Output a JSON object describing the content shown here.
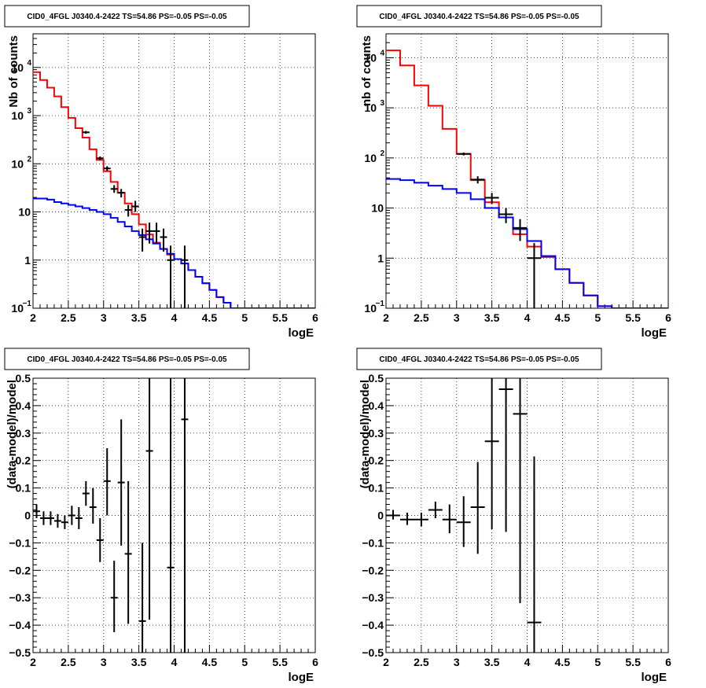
{
  "chart_data": [
    {
      "type": "line",
      "title": "CID0_4FGL J0340.4-2422 TS=54.86 PS=-0.05 PS=-0.05",
      "xlabel": "logE",
      "ylabel": "Nb of counts",
      "xlim": [
        2,
        6
      ],
      "ylim": [
        0.1,
        50000
      ],
      "log_y": true,
      "grid": true,
      "xticks": [
        "2",
        "2.5",
        "3",
        "3.5",
        "4",
        "4.5",
        "5",
        "5.5",
        "6"
      ],
      "yticks": [
        {
          "value": 0.1,
          "label": "10",
          "sup": "−1"
        },
        {
          "value": 1,
          "label": "1",
          "sup": ""
        },
        {
          "value": 10,
          "label": "10",
          "sup": ""
        },
        {
          "value": 100,
          "label": "10",
          "sup": "2"
        },
        {
          "value": 1000,
          "label": "10",
          "sup": "3"
        },
        {
          "value": 10000,
          "label": "10",
          "sup": "4"
        }
      ],
      "step_series": [
        {
          "color": "#ff0000",
          "edges": [
            2,
            2.1,
            2.2,
            2.3,
            2.4,
            2.5,
            2.6,
            2.7,
            2.8,
            2.9,
            3.0,
            3.1,
            3.2,
            3.3,
            3.4,
            3.5,
            3.6,
            3.7,
            3.8,
            3.9,
            4.0,
            4.1,
            4.2,
            4.3,
            4.4,
            4.5,
            4.6,
            4.7,
            4.8,
            4.9,
            5.0,
            5.1,
            5.2,
            5.3,
            5.4,
            5.5,
            5.6,
            5.7,
            5.8,
            5.9,
            6.0
          ],
          "values": [
            8000,
            5500,
            3800,
            2500,
            1500,
            900,
            550,
            350,
            200,
            120,
            70,
            42,
            25,
            15,
            9,
            5.5,
            3.4,
            2.3,
            1.7,
            1.3,
            1.05,
            0.85,
            0.62,
            0.45,
            0.33,
            0.24,
            0.17,
            0.13,
            0.1,
            0.1,
            0.1,
            0.1,
            0.1,
            0.1,
            0.1,
            0.1,
            0.1,
            0.1,
            0.1,
            0.1
          ]
        },
        {
          "color": "#0000ff",
          "edges": [
            2,
            2.1,
            2.2,
            2.3,
            2.4,
            2.5,
            2.6,
            2.7,
            2.8,
            2.9,
            3.0,
            3.1,
            3.2,
            3.3,
            3.4,
            3.5,
            3.6,
            3.7,
            3.8,
            3.9,
            4.0,
            4.1,
            4.2,
            4.3,
            4.4,
            4.5,
            4.6,
            4.7,
            4.8,
            4.9,
            5.0,
            5.1,
            5.2,
            5.3,
            5.4,
            5.5,
            5.6,
            5.7,
            5.8,
            5.9,
            6.0
          ],
          "values": [
            19,
            19,
            18,
            16,
            15,
            14,
            13,
            12,
            11,
            10,
            9,
            7.5,
            6.2,
            5,
            4,
            3.3,
            2.7,
            2.2,
            1.7,
            1.35,
            1.05,
            0.85,
            0.62,
            0.45,
            0.33,
            0.24,
            0.17,
            0.13,
            0.1,
            0.1,
            0.1,
            0.1,
            0.1,
            0.1,
            0.1,
            0.1,
            0.1,
            0.1,
            0.1,
            0.1
          ]
        }
      ],
      "points": [
        {
          "x": 2.75,
          "y": 450,
          "xerr": 0.05,
          "ylo": 420,
          "yhi": 480
        },
        {
          "x": 2.95,
          "y": 130,
          "xerr": 0.05,
          "ylo": 118,
          "yhi": 142
        },
        {
          "x": 3.05,
          "y": 80,
          "xerr": 0.05,
          "ylo": 71,
          "yhi": 89
        },
        {
          "x": 3.15,
          "y": 30,
          "xerr": 0.05,
          "ylo": 25,
          "yhi": 36
        },
        {
          "x": 3.25,
          "y": 25,
          "xerr": 0.05,
          "ylo": 20,
          "yhi": 30
        },
        {
          "x": 3.35,
          "y": 11,
          "xerr": 0.05,
          "ylo": 8,
          "yhi": 14
        },
        {
          "x": 3.45,
          "y": 13,
          "xerr": 0.05,
          "ylo": 10,
          "yhi": 17
        },
        {
          "x": 3.55,
          "y": 3,
          "xerr": 0.05,
          "ylo": 1.5,
          "yhi": 4.5
        },
        {
          "x": 3.65,
          "y": 4,
          "xerr": 0.05,
          "ylo": 2.2,
          "yhi": 6
        },
        {
          "x": 3.75,
          "y": 4,
          "xerr": 0.05,
          "ylo": 2.2,
          "yhi": 6
        },
        {
          "x": 3.85,
          "y": 3,
          "xerr": 0.05,
          "ylo": 1.5,
          "yhi": 4.5
        },
        {
          "x": 3.95,
          "y": 1,
          "xerr": 0.05,
          "ylo": 0.1,
          "yhi": 2
        },
        {
          "x": 4.15,
          "y": 1,
          "xerr": 0.05,
          "ylo": 0.1,
          "yhi": 2
        }
      ]
    },
    {
      "type": "line",
      "title": "CID0_4FGL J0340.4-2422 TS=54.86 PS=-0.05 PS=-0.05",
      "xlabel": "logE",
      "ylabel": "nb of counts",
      "xlim": [
        2,
        6
      ],
      "ylim": [
        0.1,
        30000
      ],
      "log_y": true,
      "grid": true,
      "xticks": [
        "2",
        "2.5",
        "3",
        "3.5",
        "4",
        "4.5",
        "5",
        "5.5",
        "6"
      ],
      "yticks": [
        {
          "value": 0.1,
          "label": "10",
          "sup": "−1"
        },
        {
          "value": 1,
          "label": "1",
          "sup": ""
        },
        {
          "value": 10,
          "label": "10",
          "sup": ""
        },
        {
          "value": 100,
          "label": "10",
          "sup": "2"
        },
        {
          "value": 1000,
          "label": "10",
          "sup": "3"
        },
        {
          "value": 10000,
          "label": "10",
          "sup": "4"
        }
      ],
      "step_series": [
        {
          "color": "#ff0000",
          "edges": [
            2,
            2.2,
            2.4,
            2.6,
            2.8,
            3.0,
            3.2,
            3.4,
            3.6,
            3.8,
            4.0,
            4.2,
            4.4,
            4.6,
            4.8,
            5.0,
            5.2,
            5.4,
            5.6,
            5.8,
            6.0
          ],
          "values": [
            14000,
            7000,
            2800,
            1100,
            380,
            120,
            36,
            13,
            6.5,
            3,
            1.7,
            1.05,
            0.6,
            0.32,
            0.18,
            0.11,
            0.1,
            0.1,
            0.1,
            0.1
          ]
        },
        {
          "color": "#0000ff",
          "edges": [
            2,
            2.2,
            2.4,
            2.6,
            2.8,
            3.0,
            3.2,
            3.4,
            3.6,
            3.8,
            4.0,
            4.2,
            4.4,
            4.6,
            4.8,
            5.0,
            5.2,
            5.4,
            5.6,
            5.8,
            6.0
          ],
          "values": [
            38,
            36,
            32,
            28,
            24,
            20,
            15,
            10,
            6.5,
            3.8,
            2.2,
            1.1,
            0.6,
            0.32,
            0.18,
            0.11,
            0.1,
            0.1,
            0.1,
            0.1
          ]
        }
      ],
      "points": [
        {
          "x": 3.1,
          "y": 120,
          "xerr": 0.1,
          "ylo": 112,
          "yhi": 128
        },
        {
          "x": 3.3,
          "y": 37,
          "xerr": 0.1,
          "ylo": 31,
          "yhi": 43
        },
        {
          "x": 3.5,
          "y": 16,
          "xerr": 0.1,
          "ylo": 12,
          "yhi": 20
        },
        {
          "x": 3.7,
          "y": 7.5,
          "xerr": 0.1,
          "ylo": 5,
          "yhi": 10
        },
        {
          "x": 3.9,
          "y": 4,
          "xerr": 0.1,
          "ylo": 2.2,
          "yhi": 6
        },
        {
          "x": 4.1,
          "y": 1,
          "xerr": 0.1,
          "ylo": 0.1,
          "yhi": 2
        }
      ]
    },
    {
      "type": "scatter",
      "title": "CID0_4FGL J0340.4-2422 TS=54.86 PS=-0.05 PS=-0.05",
      "xlabel": "logE",
      "ylabel": "(data-model)/model",
      "xlim": [
        2,
        6
      ],
      "ylim": [
        -0.5,
        0.5
      ],
      "log_y": false,
      "grid": true,
      "xticks": [
        "2",
        "2.5",
        "3",
        "3.5",
        "4",
        "4.5",
        "5",
        "5.5",
        "6"
      ],
      "yticks": [
        {
          "value": -0.5,
          "label": "−0.5",
          "sup": ""
        },
        {
          "value": -0.4,
          "label": "−0.4",
          "sup": ""
        },
        {
          "value": -0.3,
          "label": "−0.3",
          "sup": ""
        },
        {
          "value": -0.2,
          "label": "−0.2",
          "sup": ""
        },
        {
          "value": -0.1,
          "label": "−0.1",
          "sup": ""
        },
        {
          "value": 0,
          "label": "0",
          "sup": ""
        },
        {
          "value": 0.1,
          "label": "0.1",
          "sup": ""
        },
        {
          "value": 0.2,
          "label": "0.2",
          "sup": ""
        },
        {
          "value": 0.3,
          "label": "0.3",
          "sup": ""
        },
        {
          "value": 0.4,
          "label": "0.4",
          "sup": ""
        },
        {
          "value": 0.5,
          "label": "0.5",
          "sup": ""
        }
      ],
      "step_series": [],
      "points": [
        {
          "x": 2.05,
          "y": 0.015,
          "xerr": 0.05,
          "ylo": -0.01,
          "yhi": 0.04
        },
        {
          "x": 2.15,
          "y": -0.01,
          "xerr": 0.05,
          "ylo": -0.035,
          "yhi": 0.015
        },
        {
          "x": 2.25,
          "y": -0.01,
          "xerr": 0.05,
          "ylo": -0.035,
          "yhi": 0.015
        },
        {
          "x": 2.35,
          "y": -0.02,
          "xerr": 0.05,
          "ylo": -0.045,
          "yhi": 0.005
        },
        {
          "x": 2.45,
          "y": -0.025,
          "xerr": 0.05,
          "ylo": -0.05,
          "yhi": 0.0
        },
        {
          "x": 2.55,
          "y": 0.0,
          "xerr": 0.05,
          "ylo": -0.035,
          "yhi": 0.035
        },
        {
          "x": 2.65,
          "y": -0.01,
          "xerr": 0.05,
          "ylo": -0.05,
          "yhi": 0.03
        },
        {
          "x": 2.75,
          "y": 0.08,
          "xerr": 0.05,
          "ylo": 0.035,
          "yhi": 0.125
        },
        {
          "x": 2.85,
          "y": 0.03,
          "xerr": 0.05,
          "ylo": -0.03,
          "yhi": 0.1
        },
        {
          "x": 2.95,
          "y": -0.09,
          "xerr": 0.05,
          "ylo": -0.17,
          "yhi": -0.01
        },
        {
          "x": 3.05,
          "y": 0.125,
          "xerr": 0.05,
          "ylo": 0.0,
          "yhi": 0.245
        },
        {
          "x": 3.15,
          "y": -0.3,
          "xerr": 0.05,
          "ylo": -0.425,
          "yhi": -0.165
        },
        {
          "x": 3.25,
          "y": 0.12,
          "xerr": 0.05,
          "ylo": -0.11,
          "yhi": 0.35
        },
        {
          "x": 3.35,
          "y": -0.14,
          "xerr": 0.05,
          "ylo": -0.395,
          "yhi": 0.125
        },
        {
          "x": 3.55,
          "y": -0.385,
          "xerr": 0.05,
          "ylo": -0.5,
          "yhi": -0.1
        },
        {
          "x": 3.65,
          "y": 0.235,
          "xerr": 0.05,
          "ylo": -0.38,
          "yhi": 0.5
        },
        {
          "x": 3.95,
          "y": -0.19,
          "xerr": 0.05,
          "ylo": -0.5,
          "yhi": 0.5
        },
        {
          "x": 4.15,
          "y": 0.35,
          "xerr": 0.05,
          "ylo": -0.5,
          "yhi": 0.5
        }
      ]
    },
    {
      "type": "scatter",
      "title": "CID0_4FGL J0340.4-2422 TS=54.86 PS=-0.05 PS=-0.05",
      "xlabel": "logE",
      "ylabel": "(data-model)/model",
      "xlim": [
        2,
        6
      ],
      "ylim": [
        -0.5,
        0.5
      ],
      "log_y": false,
      "grid": true,
      "xticks": [
        "2",
        "2.5",
        "3",
        "3.5",
        "4",
        "4.5",
        "5",
        "5.5",
        "6"
      ],
      "yticks": [
        {
          "value": -0.5,
          "label": "−0.5",
          "sup": ""
        },
        {
          "value": -0.4,
          "label": "−0.4",
          "sup": ""
        },
        {
          "value": -0.3,
          "label": "−0.3",
          "sup": ""
        },
        {
          "value": -0.2,
          "label": "−0.2",
          "sup": ""
        },
        {
          "value": -0.1,
          "label": "−0.1",
          "sup": ""
        },
        {
          "value": 0,
          "label": "0",
          "sup": ""
        },
        {
          "value": 0.1,
          "label": "0.1",
          "sup": ""
        },
        {
          "value": 0.2,
          "label": "0.2",
          "sup": ""
        },
        {
          "value": 0.3,
          "label": "0.3",
          "sup": ""
        },
        {
          "value": 0.4,
          "label": "0.4",
          "sup": ""
        },
        {
          "value": 0.5,
          "label": "0.5",
          "sup": ""
        }
      ],
      "step_series": [],
      "points": [
        {
          "x": 2.1,
          "y": 0.0,
          "xerr": 0.1,
          "ylo": -0.015,
          "yhi": 0.02
        },
        {
          "x": 2.3,
          "y": -0.015,
          "xerr": 0.1,
          "ylo": -0.035,
          "yhi": 0.01
        },
        {
          "x": 2.5,
          "y": -0.015,
          "xerr": 0.1,
          "ylo": -0.04,
          "yhi": 0.01
        },
        {
          "x": 2.7,
          "y": 0.02,
          "xerr": 0.1,
          "ylo": -0.01,
          "yhi": 0.05
        },
        {
          "x": 2.9,
          "y": -0.015,
          "xerr": 0.1,
          "ylo": -0.065,
          "yhi": 0.04
        },
        {
          "x": 3.1,
          "y": -0.025,
          "xerr": 0.1,
          "ylo": -0.115,
          "yhi": 0.07
        },
        {
          "x": 3.3,
          "y": 0.03,
          "xerr": 0.1,
          "ylo": -0.14,
          "yhi": 0.195
        },
        {
          "x": 3.5,
          "y": 0.27,
          "xerr": 0.1,
          "ylo": -0.05,
          "yhi": 0.5
        },
        {
          "x": 3.7,
          "y": 0.46,
          "xerr": 0.1,
          "ylo": -0.06,
          "yhi": 0.5
        },
        {
          "x": 3.9,
          "y": 0.37,
          "xerr": 0.1,
          "ylo": -0.32,
          "yhi": 0.5
        },
        {
          "x": 4.1,
          "y": -0.39,
          "xerr": 0.1,
          "ylo": -0.5,
          "yhi": 0.215
        }
      ]
    }
  ]
}
